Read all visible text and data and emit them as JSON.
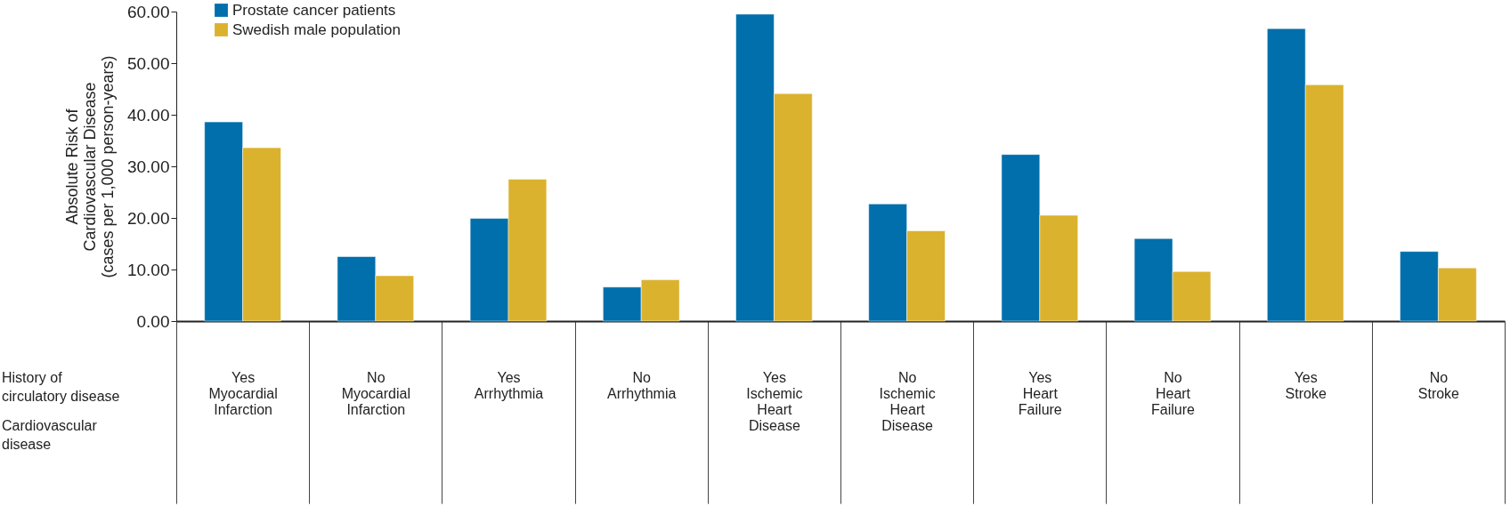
{
  "chart_data": {
    "type": "bar",
    "ylabel": "Absolute Risk of\nCardiovascular Disease\n(cases per 1,000 person-years)",
    "categories": [
      "Yes\n\nMyocardial\nInfarction",
      "No\n\nMyocardial\nInfarction",
      "Yes\n\nArrhythmia",
      "No\n\nArrhythmia",
      "Yes\n\nIschemic\nHeart\nDisease",
      "No\n\nIschemic\nHeart\nDisease",
      "Yes\n\nHeart\nFailure",
      "No\n\nHeart\nFailure",
      "Yes\n\nStroke",
      "No\n\nStroke"
    ],
    "series": [
      {
        "name": "Prostate cancer patients",
        "color": "#006fac",
        "values": [
          38.6,
          12.5,
          19.9,
          6.6,
          59.5,
          22.7,
          32.3,
          16.0,
          56.7,
          13.5
        ]
      },
      {
        "name": "Swedish male population",
        "color": "#dbb22e",
        "values": [
          33.6,
          8.8,
          27.5,
          8.0,
          44.1,
          17.5,
          20.5,
          9.6,
          45.8,
          10.3
        ]
      }
    ],
    "ylim": [
      0,
      60
    ],
    "yticks": [
      {
        "value": 0,
        "label": "0.00"
      },
      {
        "value": 10,
        "label": "10.00"
      },
      {
        "value": 20,
        "label": "20.00"
      },
      {
        "value": 30,
        "label": "30.00"
      },
      {
        "value": 40,
        "label": "40.00"
      },
      {
        "value": 50,
        "label": "50.00"
      },
      {
        "value": 60,
        "label": "60.00"
      }
    ],
    "annotations": [
      "History of\ncirculatory disease",
      "Cardiovascular\ndisease"
    ],
    "legend": "top left",
    "grid": false
  }
}
